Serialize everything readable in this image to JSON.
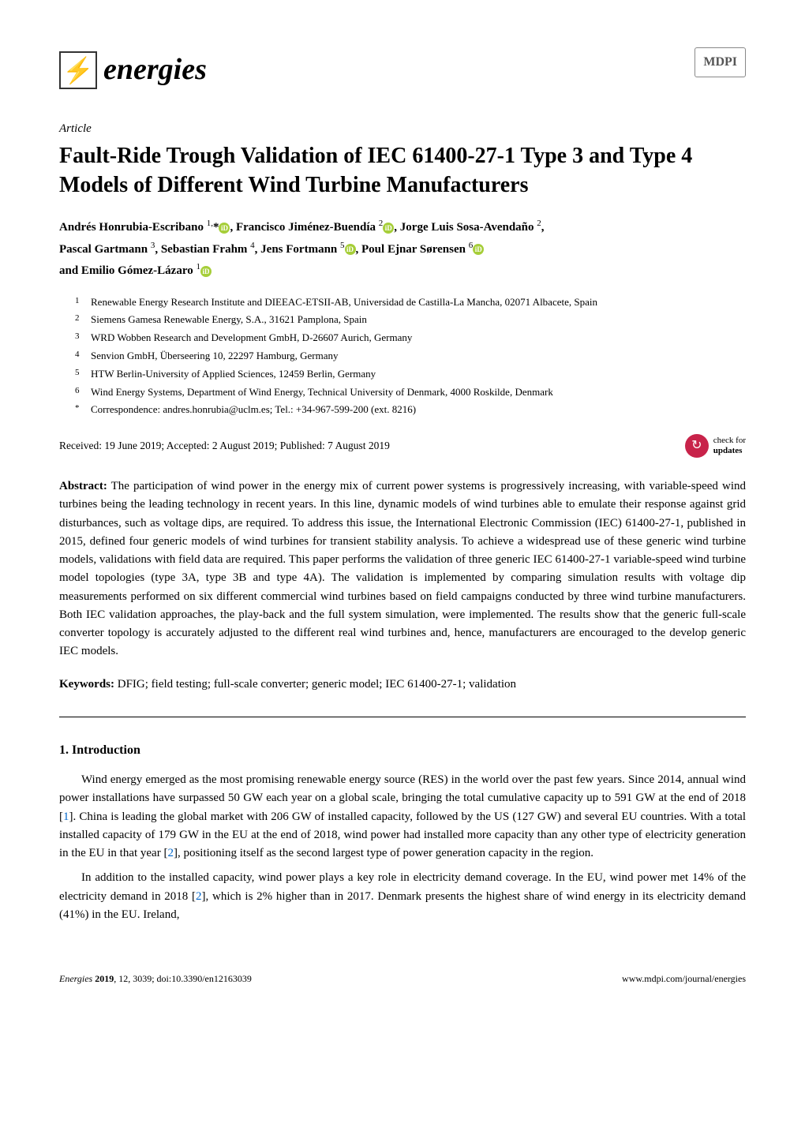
{
  "header": {
    "journal_name": "energies",
    "publisher": "MDPI"
  },
  "article_type": "Article",
  "title": "Fault-Ride Trough Validation of IEC 61400-27-1 Type 3 and Type 4 Models of Different Wind Turbine Manufacturers",
  "authors": {
    "line1": "Andrés Honrubia-Escribano ",
    "sup1": "1,",
    "star": "*",
    "line1b": ", Francisco Jiménez-Buendía ",
    "sup2": "2",
    "line1c": ", Jorge Luis Sosa-Avendaño ",
    "sup2b": "2",
    "line1d": ",",
    "line2": "Pascal Gartmann ",
    "sup3": "3",
    "line2b": ", Sebastian Frahm ",
    "sup4": "4",
    "line2c": ", Jens Fortmann ",
    "sup5": "5",
    "line2d": ", Poul Ejnar Sørensen ",
    "sup6": "6",
    "line3": "and Emilio Gómez-Lázaro ",
    "sup1b": "1"
  },
  "affiliations": [
    {
      "num": "1",
      "text": "Renewable Energy Research Institute and DIEEAC-ETSII-AB, Universidad de Castilla-La Mancha, 02071 Albacete, Spain"
    },
    {
      "num": "2",
      "text": "Siemens Gamesa Renewable Energy, S.A., 31621 Pamplona, Spain"
    },
    {
      "num": "3",
      "text": "WRD Wobben Research and Development GmbH, D-26607 Aurich, Germany"
    },
    {
      "num": "4",
      "text": "Senvion GmbH, Überseering 10, 22297 Hamburg, Germany"
    },
    {
      "num": "5",
      "text": "HTW Berlin-University of Applied Sciences, 12459 Berlin, Germany"
    },
    {
      "num": "6",
      "text": "Wind Energy Systems, Department of Wind Energy, Technical University of Denmark, 4000 Roskilde, Denmark"
    },
    {
      "num": "*",
      "text": "Correspondence: andres.honrubia@uclm.es; Tel.: +34-967-599-200 (ext. 8216)"
    }
  ],
  "dates": "Received: 19 June 2019; Accepted: 2 August 2019; Published: 7 August 2019",
  "check_updates": {
    "line1": "check for",
    "line2": "updates"
  },
  "abstract": {
    "label": "Abstract:",
    "text": " The participation of wind power in the energy mix of current power systems is progressively increasing, with variable-speed wind turbines being the leading technology in recent years. In this line, dynamic models of wind turbines able to emulate their response against grid disturbances, such as voltage dips, are required. To address this issue, the International Electronic Commission (IEC) 61400-27-1, published in 2015, defined four generic models of wind turbines for transient stability analysis. To achieve a widespread use of these generic wind turbine models, validations with field data are required. This paper performs the validation of three generic IEC 61400-27-1 variable-speed wind turbine model topologies (type 3A, type 3B and type 4A). The validation is implemented by comparing simulation results with voltage dip measurements performed on six different commercial wind turbines based on field campaigns conducted by three wind turbine manufacturers. Both IEC validation approaches, the play-back and the full system simulation, were implemented. The results show that the generic full-scale converter topology is accurately adjusted to the different real wind turbines and, hence, manufacturers are encouraged to the develop generic IEC models."
  },
  "keywords": {
    "label": "Keywords:",
    "text": " DFIG; field testing; full-scale converter; generic model; IEC 61400-27-1; validation"
  },
  "section1": {
    "heading": "1. Introduction",
    "para1a": "Wind energy emerged as the most promising renewable energy source (RES) in the world over the past few years. Since 2014, annual wind power installations have surpassed 50 GW each year on a global scale, bringing the total cumulative capacity up to 591 GW at the end of 2018 [",
    "ref1": "1",
    "para1b": "]. China is leading the global market with 206 GW of installed capacity, followed by the US (127 GW) and several EU countries. With a total installed capacity of 179 GW in the EU at the end of 2018, wind power had installed more capacity than any other type of electricity generation in the EU in that year [",
    "ref2": "2",
    "para1c": "], positioning itself as the second largest type of power generation capacity in the region.",
    "para2a": "In addition to the installed capacity, wind power plays a key role in electricity demand coverage. In the EU, wind power met 14% of the electricity demand in 2018 [",
    "ref2b": "2",
    "para2b": "], which is 2% higher than in 2017. Denmark presents the highest share of wind energy in its electricity demand (41%) in the EU. Ireland,"
  },
  "footer": {
    "left_italic": "Energies ",
    "left_bold": "2019",
    "left_rest": ", 12, 3039; doi:10.3390/en12163039",
    "right": "www.mdpi.com/journal/energies"
  }
}
